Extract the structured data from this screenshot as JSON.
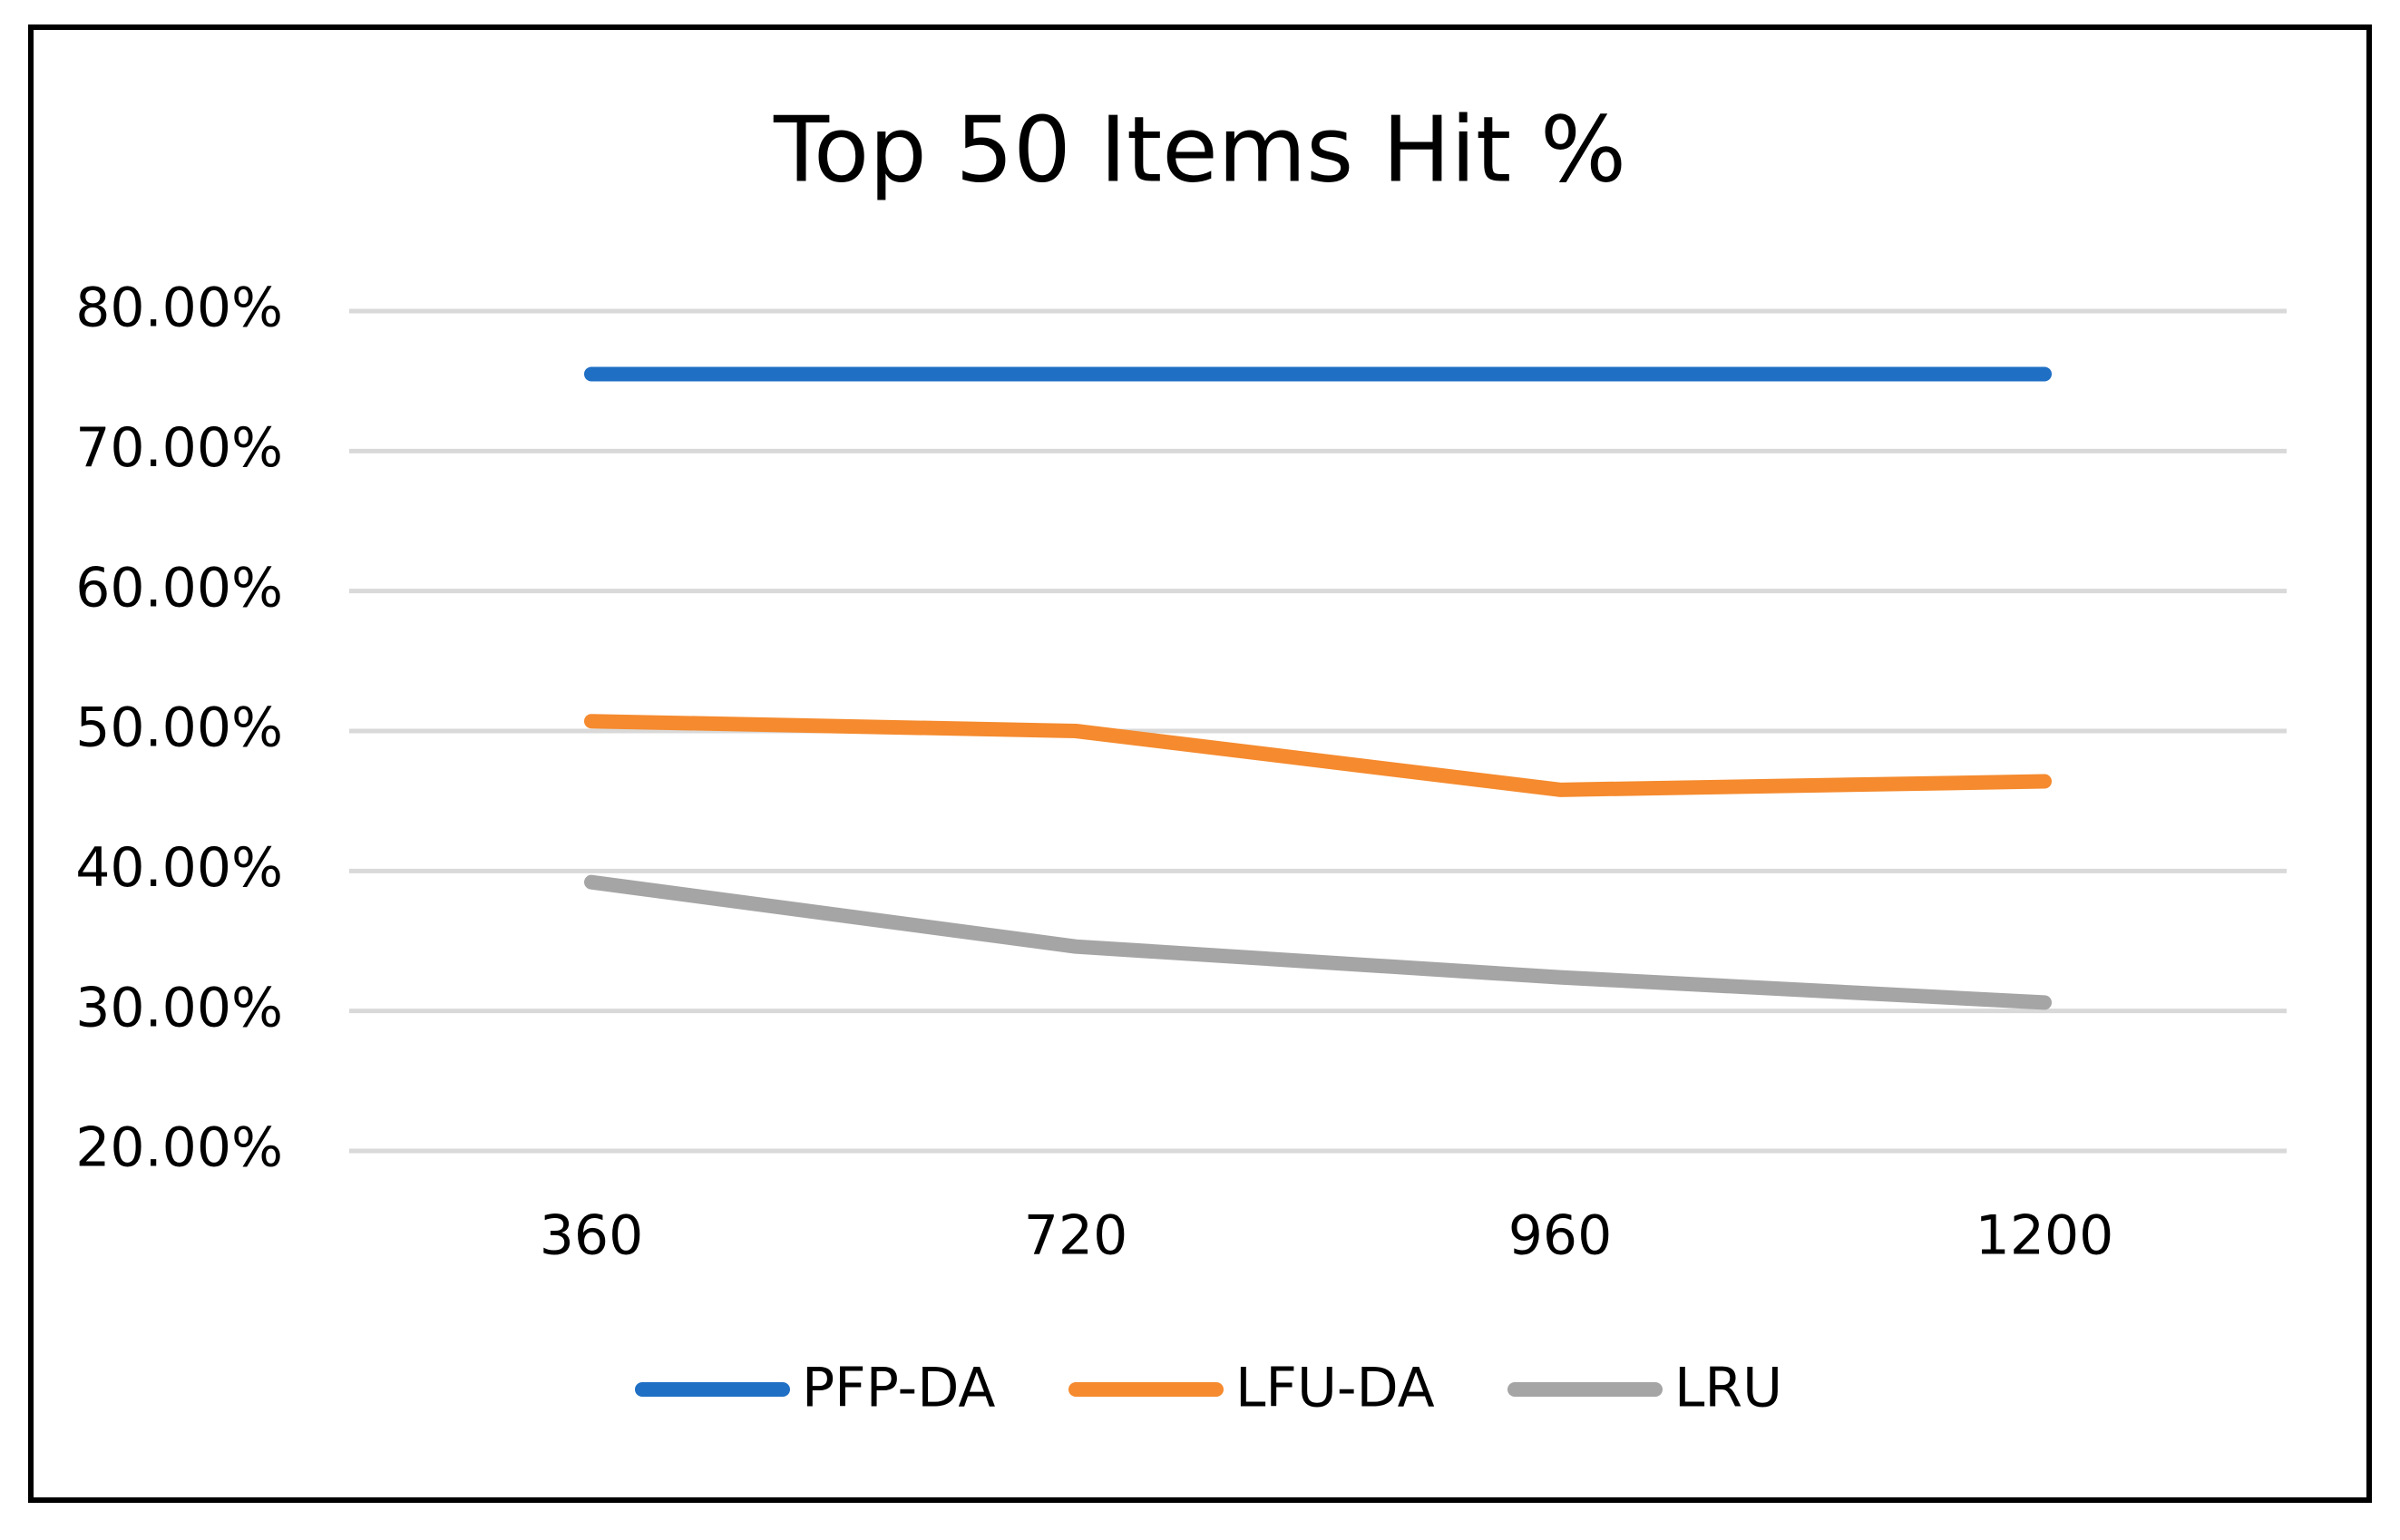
{
  "chart_data": {
    "type": "line",
    "title": "Top 50 Items Hit %",
    "categories": [
      "360",
      "720",
      "960",
      "1200"
    ],
    "series": [
      {
        "name": "PFP-DA",
        "color": "#1F6FC5",
        "values": [
          75.5,
          75.5,
          75.5,
          75.5
        ]
      },
      {
        "name": "LFU-DA",
        "color": "#F58A2E",
        "values": [
          50.7,
          50.0,
          45.8,
          46.4
        ]
      },
      {
        "name": "LRU",
        "color": "#A5A5A5",
        "values": [
          39.2,
          34.6,
          32.4,
          30.6
        ]
      }
    ],
    "ylim": [
      20,
      80
    ],
    "yticks": [
      {
        "value": 20,
        "label": "20.00%"
      },
      {
        "value": 30,
        "label": "30.00%"
      },
      {
        "value": 40,
        "label": "40.00%"
      },
      {
        "value": 50,
        "label": "50.00%"
      },
      {
        "value": 60,
        "label": "60.00%"
      },
      {
        "value": 70,
        "label": "70.00%"
      },
      {
        "value": 80,
        "label": "80.00%"
      }
    ],
    "grid": true
  }
}
